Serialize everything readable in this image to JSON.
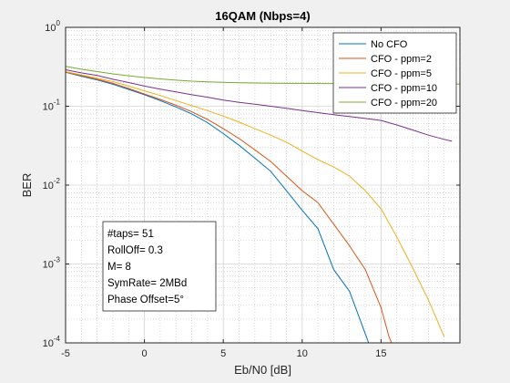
{
  "chart_data": {
    "type": "line",
    "title": "16QAM (Nbps=4)",
    "xlabel": "Eb/N0 [dB]",
    "ylabel": "BER",
    "xlim": [
      -5,
      20
    ],
    "ylim": [
      0.0001,
      1
    ],
    "yscale": "log",
    "grid": true,
    "minor_grid": true,
    "legend_position": "top-right",
    "x_ticks": [
      {
        "value": -5,
        "label": "-5"
      },
      {
        "value": 0,
        "label": "0"
      },
      {
        "value": 5,
        "label": "5"
      },
      {
        "value": 10,
        "label": "10"
      },
      {
        "value": 15,
        "label": "15"
      }
    ],
    "y_ticks": [
      {
        "value": 1,
        "base": "10",
        "exp": "0"
      },
      {
        "value": 0.1,
        "base": "10",
        "exp": "-1"
      },
      {
        "value": 0.01,
        "base": "10",
        "exp": "-2"
      },
      {
        "value": 0.001,
        "base": "10",
        "exp": "-3"
      },
      {
        "value": 0.0001,
        "base": "10",
        "exp": "-4"
      }
    ],
    "series": [
      {
        "name": "No CFO",
        "color": "#0072bd",
        "x": [
          -5,
          -4,
          -3,
          -2,
          -1,
          0,
          1,
          2,
          3,
          4,
          5,
          6,
          7,
          8,
          9,
          10,
          11,
          12,
          13,
          14,
          14.5
        ],
        "y": [
          0.27,
          0.24,
          0.215,
          0.19,
          0.163,
          0.14,
          0.118,
          0.098,
          0.08,
          0.062,
          0.045,
          0.032,
          0.022,
          0.015,
          0.0085,
          0.0048,
          0.0028,
          0.00085,
          0.00045,
          0.00013,
          7e-05
        ]
      },
      {
        "name": "CFO - ppm=2",
        "color": "#d95319",
        "x": [
          -5,
          -4,
          -3,
          -2,
          -1,
          0,
          1,
          2,
          3,
          4,
          5,
          6,
          7,
          8,
          9,
          10,
          11,
          12,
          13,
          14,
          15,
          15.5,
          16
        ],
        "y": [
          0.27,
          0.245,
          0.22,
          0.195,
          0.168,
          0.143,
          0.122,
          0.103,
          0.085,
          0.068,
          0.052,
          0.039,
          0.028,
          0.02,
          0.013,
          0.0085,
          0.006,
          0.0032,
          0.0017,
          0.00085,
          0.00028,
          0.00012,
          7e-05
        ]
      },
      {
        "name": "CFO - ppm=5",
        "color": "#edb120",
        "x": [
          -5,
          -4,
          -3,
          -2,
          -1,
          0,
          1,
          2,
          3,
          4,
          5,
          6,
          7,
          8,
          9,
          10,
          11,
          12,
          13,
          14,
          15,
          16,
          17,
          18,
          19
        ],
        "y": [
          0.275,
          0.25,
          0.227,
          0.205,
          0.18,
          0.157,
          0.137,
          0.118,
          0.102,
          0.088,
          0.075,
          0.063,
          0.052,
          0.043,
          0.035,
          0.027,
          0.021,
          0.017,
          0.013,
          0.0085,
          0.005,
          0.0022,
          0.0009,
          0.00035,
          0.00012
        ]
      },
      {
        "name": "CFO - ppm=10",
        "color": "#7e2f8e",
        "x": [
          -5,
          -4,
          -3,
          -2,
          -1,
          0,
          1,
          2,
          3,
          4,
          5,
          6,
          7,
          8,
          9,
          10,
          11,
          12,
          13,
          14,
          15,
          16,
          17,
          18,
          19,
          19.5
        ],
        "y": [
          0.29,
          0.265,
          0.245,
          0.22,
          0.2,
          0.18,
          0.165,
          0.152,
          0.14,
          0.13,
          0.12,
          0.112,
          0.106,
          0.1,
          0.094,
          0.088,
          0.083,
          0.078,
          0.074,
          0.07,
          0.066,
          0.058,
          0.05,
          0.043,
          0.038,
          0.036
        ]
      },
      {
        "name": "CFO - ppm=20",
        "color": "#77ac30",
        "x": [
          -5,
          -4,
          -3,
          -2,
          -1,
          0,
          1,
          2,
          3,
          4,
          5,
          6,
          7,
          8,
          9,
          10,
          11,
          12,
          13,
          14,
          15,
          16,
          17,
          18,
          19,
          20
        ],
        "y": [
          0.32,
          0.295,
          0.275,
          0.257,
          0.243,
          0.231,
          0.222,
          0.214,
          0.208,
          0.204,
          0.201,
          0.198,
          0.197,
          0.196,
          0.195,
          0.195,
          0.194,
          0.194,
          0.193,
          0.193,
          0.193,
          0.193,
          0.192,
          0.192,
          0.192,
          0.191
        ]
      }
    ],
    "annotation": {
      "lines": [
        "#taps= 51",
        "RollOff= 0.3",
        "M= 8",
        "SymRate= 2MBd",
        "Phase Offset=5°"
      ]
    }
  }
}
